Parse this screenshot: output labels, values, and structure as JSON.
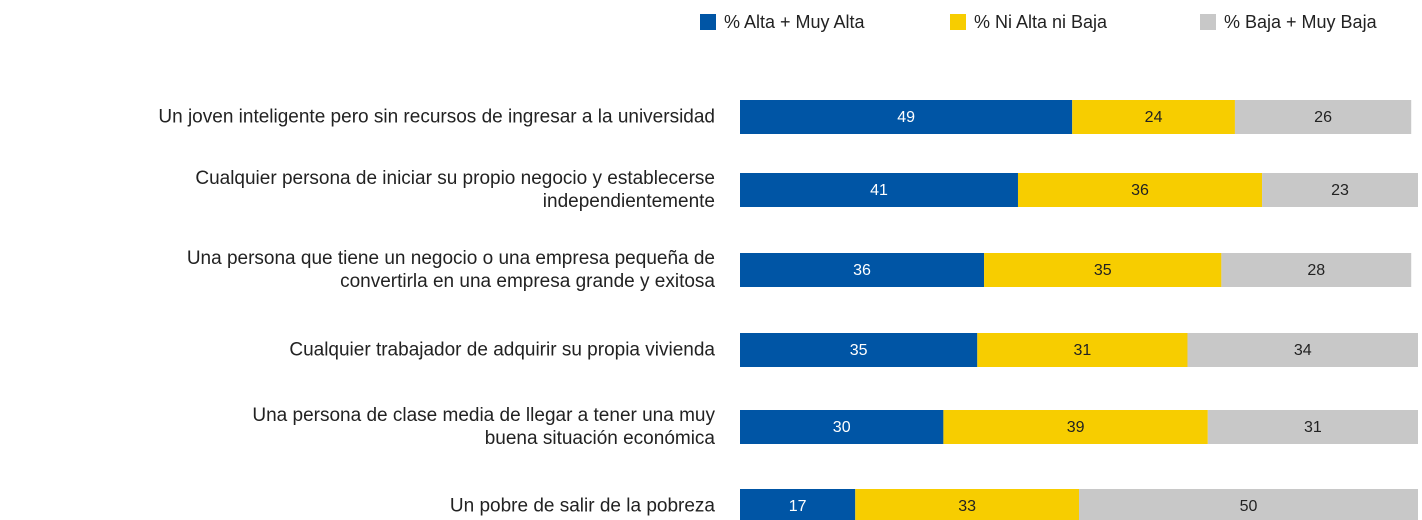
{
  "chart_data": {
    "type": "stacked-bar-horizontal",
    "categories": [
      "Un joven inteligente pero sin recursos de ingresar a la universidad",
      "Cualquier persona de iniciar su propio negocio y establecerse\nindependientemente",
      "Una persona que tiene un negocio o una empresa pequeña de\nconvertirla en una empresa grande y exitosa",
      "Cualquier trabajador de adquirir su propia vivienda",
      "Una persona de clase media de llegar a tener una muy\nbuena situación económica",
      "Un pobre de salir de la pobreza"
    ],
    "series": [
      {
        "name": "% Alta + Muy Alta",
        "color": "#0055a5",
        "label_color": "#ffffff",
        "values": [
          49,
          41,
          36,
          35,
          30,
          17
        ]
      },
      {
        "name": "% Ni Alta ni Baja",
        "color": "#f7cd00",
        "label_color": "#222222",
        "values": [
          24,
          36,
          35,
          31,
          39,
          33
        ]
      },
      {
        "name": "% Baja + Muy Baja",
        "color": "#c8c8c8",
        "label_color": "#222222",
        "values": [
          26,
          23,
          28,
          34,
          31,
          50
        ]
      }
    ],
    "xlim": [
      0,
      100
    ],
    "legend": "top-right"
  }
}
